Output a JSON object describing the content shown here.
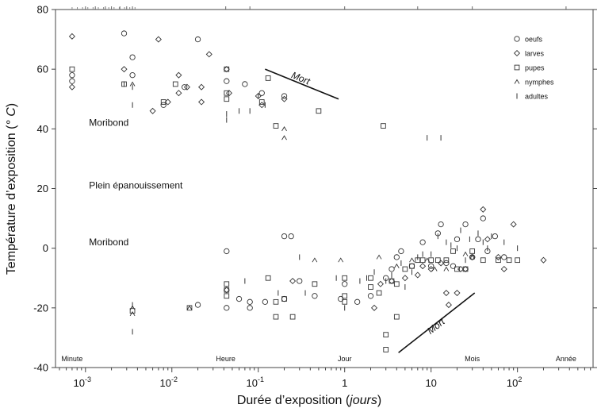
{
  "chart_data": {
    "type": "scatter",
    "title": "",
    "xlabel_main": "Durée d’exposition (",
    "xlabel_unit": "jours",
    "xlabel_end": ")",
    "ylabel_main": "Température d’exposition (",
    "ylabel_unit": "° C",
    "ylabel_end": ")",
    "x_scale": "log10",
    "xlim": [
      0.00045,
      750
    ],
    "ylim": [
      -40,
      80
    ],
    "y_ticks": [
      -40,
      -20,
      0,
      20,
      40,
      60,
      80
    ],
    "x_ticks": [
      {
        "value": 0.001,
        "base": "10",
        "exp": "-3"
      },
      {
        "value": 0.01,
        "base": "10",
        "exp": "-2"
      },
      {
        "value": 0.1,
        "base": "10",
        "exp": "-1"
      },
      {
        "value": 1,
        "base": "1",
        "exp": ""
      },
      {
        "value": 10,
        "base": "10",
        "exp": ""
      },
      {
        "value": 100,
        "base": "10",
        "exp": "2"
      }
    ],
    "time_scale_labels": [
      {
        "label": "Minute",
        "x": 0.0007
      },
      {
        "label": "Heure",
        "x": 0.042
      },
      {
        "label": "Jour",
        "x": 1
      },
      {
        "label": "Mois",
        "x": 30
      },
      {
        "label": "Année",
        "x": 365
      }
    ],
    "region_labels": [
      {
        "label": "Moribond",
        "x": 0.0011,
        "y": 41
      },
      {
        "label": "Plein épanouissement",
        "x": 0.0011,
        "y": 20
      },
      {
        "label": "Moribond",
        "x": 0.0011,
        "y": 1
      }
    ],
    "mort_lines": [
      {
        "label": "Mort",
        "from": [
          0.12,
          60
        ],
        "to": [
          0.85,
          50
        ],
        "label_at": [
          0.3,
          56
        ]
      },
      {
        "label": "Mort",
        "from": [
          4.2,
          -35
        ],
        "to": [
          32,
          -15
        ],
        "label_at": [
          12,
          -27
        ]
      }
    ],
    "legend": {
      "placement": "top-right",
      "items": [
        {
          "key": "oeufs",
          "label": "oeufs",
          "marker": "circle"
        },
        {
          "key": "larves",
          "label": "larves",
          "marker": "diamond"
        },
        {
          "key": "pupes",
          "label": "pupes",
          "marker": "square"
        },
        {
          "key": "nymphes",
          "label": "nymphes",
          "marker": "caret"
        },
        {
          "key": "adultes",
          "label": "adultes",
          "marker": "bar"
        }
      ]
    },
    "series": [
      {
        "name": "oeufs",
        "marker": "circle",
        "points": [
          [
            0.0028,
            72
          ],
          [
            0.0035,
            64
          ],
          [
            0.0035,
            58
          ],
          [
            0.0007,
            56
          ],
          [
            0.008,
            48
          ],
          [
            0.02,
            70
          ],
          [
            0.043,
            56
          ],
          [
            0.07,
            55
          ],
          [
            0.11,
            52
          ],
          [
            0.2,
            51
          ],
          [
            0.014,
            54
          ],
          [
            0.043,
            -1
          ],
          [
            0.2,
            4
          ],
          [
            0.24,
            4
          ],
          [
            0.0007,
            58
          ],
          [
            0.043,
            -20
          ],
          [
            0.08,
            -20
          ],
          [
            0.08,
            -18
          ],
          [
            0.12,
            -18
          ],
          [
            0.2,
            -17
          ],
          [
            0.45,
            -16
          ],
          [
            0.9,
            -17
          ],
          [
            1.0,
            -12
          ],
          [
            2.0,
            -16
          ],
          [
            3.0,
            -10
          ],
          [
            3.5,
            -7
          ],
          [
            4.0,
            -3
          ],
          [
            4.5,
            -1
          ],
          [
            6,
            -6
          ],
          [
            8,
            2
          ],
          [
            10,
            -6
          ],
          [
            12,
            5
          ],
          [
            13,
            8
          ],
          [
            15,
            -5
          ],
          [
            18,
            -6
          ],
          [
            20,
            3
          ],
          [
            25,
            8
          ],
          [
            30,
            -3
          ],
          [
            35,
            3
          ],
          [
            40,
            10
          ],
          [
            45,
            -1
          ],
          [
            55,
            4
          ],
          [
            70,
            -3
          ],
          [
            0.3,
            -11
          ],
          [
            0.06,
            -17
          ],
          [
            0.02,
            -19
          ],
          [
            1.4,
            -18
          ]
        ]
      },
      {
        "name": "larves",
        "marker": "diamond",
        "points": [
          [
            0.0007,
            71
          ],
          [
            0.0007,
            54
          ],
          [
            0.007,
            70
          ],
          [
            0.0028,
            60
          ],
          [
            0.009,
            49
          ],
          [
            0.012,
            52
          ],
          [
            0.012,
            58
          ],
          [
            0.015,
            54
          ],
          [
            0.022,
            54
          ],
          [
            0.027,
            65
          ],
          [
            0.043,
            60
          ],
          [
            0.046,
            52
          ],
          [
            0.11,
            48
          ],
          [
            0.2,
            50
          ],
          [
            0.043,
            -14
          ],
          [
            0.25,
            -11
          ],
          [
            2.2,
            -20
          ],
          [
            2.6,
            -12
          ],
          [
            3.5,
            -11
          ],
          [
            5,
            -10
          ],
          [
            7,
            -9
          ],
          [
            8,
            -6
          ],
          [
            10,
            -7
          ],
          [
            13,
            -5
          ],
          [
            15,
            -15
          ],
          [
            16,
            -19
          ],
          [
            20,
            -15
          ],
          [
            22,
            -7
          ],
          [
            25,
            -7
          ],
          [
            30,
            -3
          ],
          [
            40,
            13
          ],
          [
            45,
            3
          ],
          [
            60,
            -3
          ],
          [
            70,
            -7
          ],
          [
            90,
            8
          ],
          [
            200,
            -4
          ],
          [
            0.006,
            46
          ],
          [
            0.022,
            49
          ],
          [
            0.1,
            51
          ]
        ]
      },
      {
        "name": "pupes",
        "marker": "square",
        "points": [
          [
            0.0007,
            60
          ],
          [
            0.0028,
            55
          ],
          [
            0.008,
            49
          ],
          [
            0.011,
            55
          ],
          [
            0.043,
            60
          ],
          [
            0.043,
            52
          ],
          [
            0.043,
            50
          ],
          [
            0.11,
            49
          ],
          [
            0.13,
            57
          ],
          [
            0.16,
            41
          ],
          [
            0.5,
            46
          ],
          [
            2.8,
            41
          ],
          [
            0.016,
            -20
          ],
          [
            0.043,
            -12
          ],
          [
            0.043,
            -14
          ],
          [
            0.043,
            -16
          ],
          [
            0.13,
            -10
          ],
          [
            0.16,
            -23
          ],
          [
            0.25,
            -23
          ],
          [
            0.16,
            -18
          ],
          [
            1,
            -18
          ],
          [
            1,
            -10
          ],
          [
            2,
            -10
          ],
          [
            2,
            -13
          ],
          [
            2.5,
            -15
          ],
          [
            3,
            -29
          ],
          [
            3,
            -34
          ],
          [
            3.5,
            -11
          ],
          [
            4,
            -23
          ],
          [
            4,
            -12
          ],
          [
            5,
            -7
          ],
          [
            6,
            -6
          ],
          [
            7,
            -4
          ],
          [
            8,
            -4
          ],
          [
            10,
            -4
          ],
          [
            12,
            -4
          ],
          [
            15,
            -4
          ],
          [
            18,
            -1
          ],
          [
            20,
            -7
          ],
          [
            25,
            -7
          ],
          [
            30,
            -1
          ],
          [
            40,
            -4
          ],
          [
            60,
            -4
          ],
          [
            80,
            -4
          ],
          [
            100,
            -4
          ],
          [
            0.2,
            -17
          ],
          [
            1,
            -16
          ],
          [
            0.45,
            -12
          ],
          [
            0.0035,
            -21
          ]
        ]
      },
      {
        "name": "nymphes",
        "marker": "caret",
        "points": [
          [
            0.0035,
            55
          ],
          [
            0.0035,
            -22
          ],
          [
            0.0035,
            -20
          ],
          [
            0.016,
            -20
          ],
          [
            0.2,
            40
          ],
          [
            0.2,
            37
          ],
          [
            0.45,
            -4
          ],
          [
            2.5,
            -3
          ],
          [
            4,
            -6
          ],
          [
            6,
            -4
          ],
          [
            9,
            -4
          ],
          [
            11,
            -7
          ],
          [
            15,
            -7
          ],
          [
            25,
            -2
          ],
          [
            30,
            -3
          ],
          [
            0.9,
            -4
          ]
        ]
      },
      {
        "name": "adultes",
        "marker": "bar",
        "points": [
          [
            0.0028,
            55
          ],
          [
            0.0035,
            48
          ],
          [
            0.0035,
            -28
          ],
          [
            0.0035,
            -19
          ],
          [
            0.043,
            45
          ],
          [
            0.043,
            43
          ],
          [
            0.08,
            46
          ],
          [
            0.1,
            51
          ],
          [
            0.12,
            48
          ],
          [
            0.17,
            -15
          ],
          [
            0.35,
            -15
          ],
          [
            0.8,
            -10
          ],
          [
            1,
            -20
          ],
          [
            1.5,
            -11
          ],
          [
            1.8,
            -10
          ],
          [
            2.2,
            -8
          ],
          [
            3,
            -11
          ],
          [
            3.5,
            -9
          ],
          [
            4.5,
            -5
          ],
          [
            5,
            -13
          ],
          [
            7,
            -3
          ],
          [
            9,
            37
          ],
          [
            13,
            37
          ],
          [
            10,
            -2
          ],
          [
            12,
            4
          ],
          [
            15,
            2
          ],
          [
            20,
            0
          ],
          [
            25,
            -4
          ],
          [
            28,
            3
          ],
          [
            35,
            5
          ],
          [
            40,
            2
          ],
          [
            45,
            0
          ],
          [
            50,
            4
          ],
          [
            70,
            2
          ],
          [
            100,
            0
          ],
          [
            0.07,
            -11
          ],
          [
            0.0035,
            54
          ],
          [
            0.06,
            46
          ],
          [
            0.3,
            -3
          ],
          [
            6,
            -8
          ],
          [
            8,
            -2
          ],
          [
            17,
            1
          ],
          [
            22,
            6
          ]
        ]
      }
    ]
  }
}
